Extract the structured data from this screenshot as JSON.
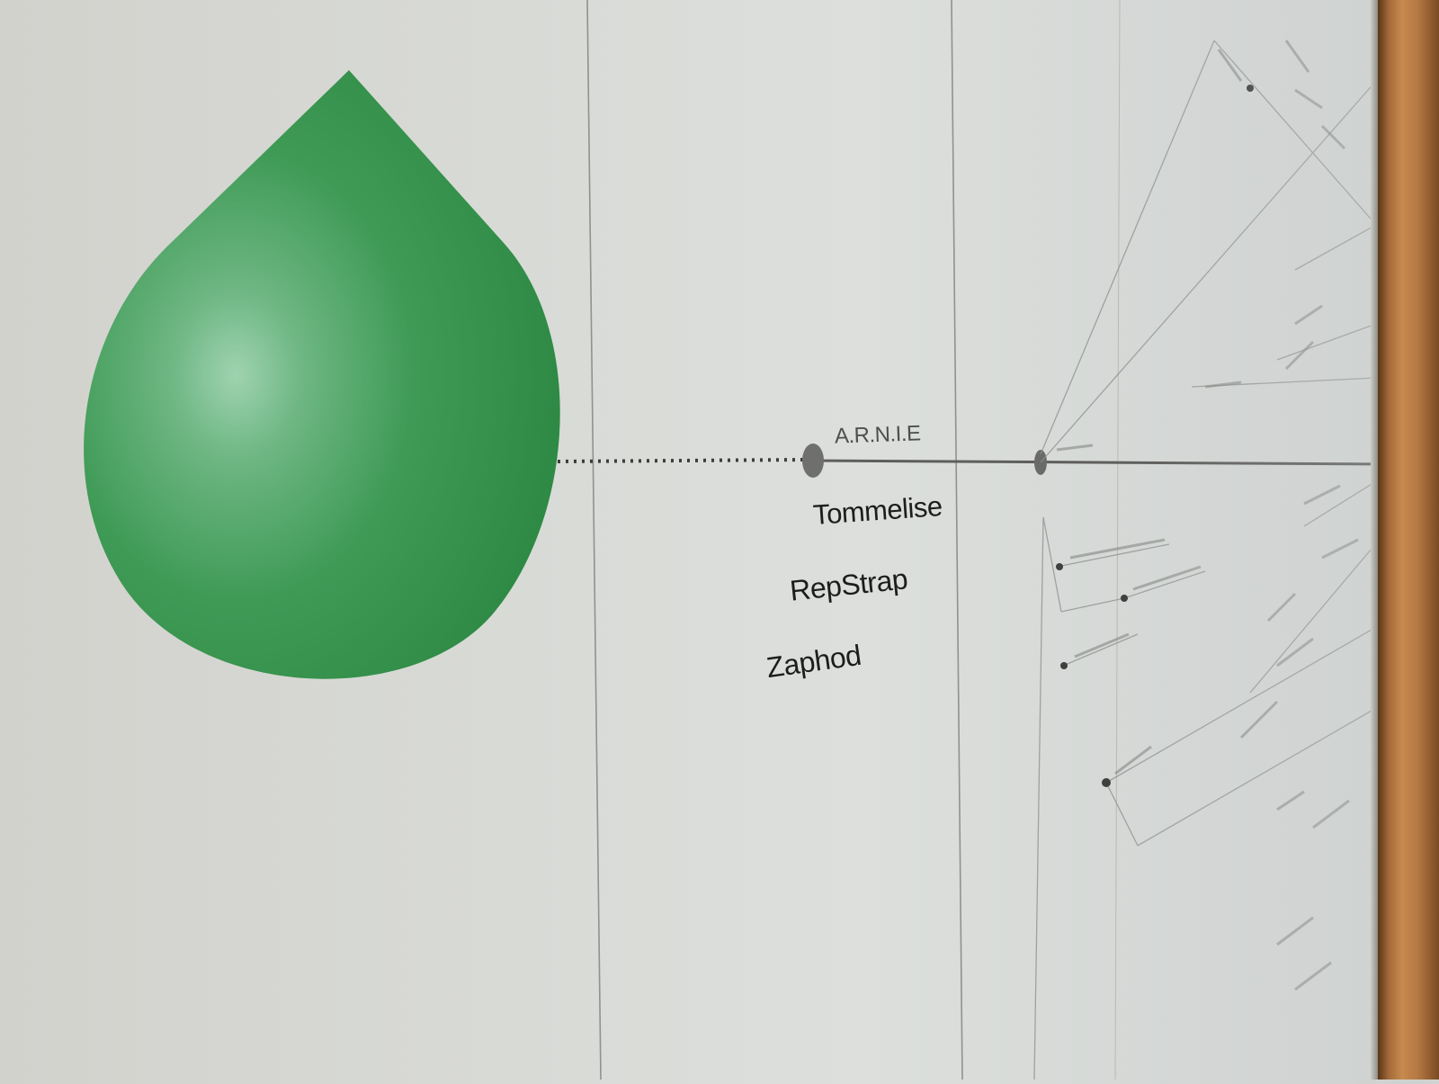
{
  "poster": {
    "labels": {
      "arnie": "A.R.N.I.E",
      "tommelise": "Tommelise",
      "repstrap": "RepStrap",
      "zaphod": "Zaphod"
    },
    "colors": {
      "drop": "#2e8b43",
      "line": "#5e5e5c",
      "text": "#1d1d1d",
      "frame": "#a46a3a"
    }
  }
}
